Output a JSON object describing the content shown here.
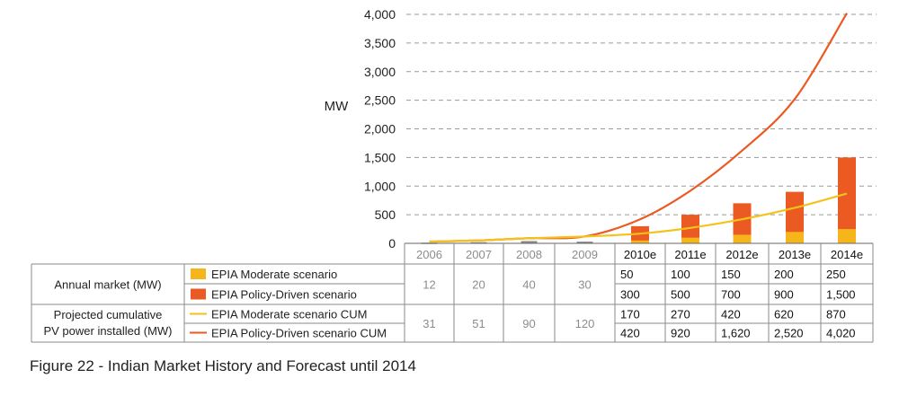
{
  "chart_data": {
    "type": "bar",
    "ylabel": "MW",
    "ylim": [
      0,
      4000
    ],
    "yticks": [
      0,
      500,
      1000,
      1500,
      2000,
      2500,
      3000,
      3500,
      4000
    ],
    "ytick_labels": [
      "0",
      "500",
      "1,000",
      "1,500",
      "2,000",
      "2,500",
      "3,000",
      "3,500",
      "4,000"
    ],
    "grid": true,
    "categories": [
      "2006",
      "2007",
      "2008",
      "2009",
      "2010e",
      "2011e",
      "2012e",
      "2013e",
      "2014e"
    ],
    "historical_count": 4,
    "series": [
      {
        "name": "EPIA Moderate scenario",
        "kind": "bar",
        "color": "#f5b51b",
        "values": [
          12,
          20,
          40,
          30,
          50,
          100,
          150,
          200,
          250
        ]
      },
      {
        "name": "EPIA Policy-Driven scenario",
        "kind": "bar",
        "color": "#ea5a22",
        "values": [
          12,
          20,
          40,
          30,
          300,
          500,
          700,
          900,
          1500
        ]
      },
      {
        "name": "EPIA Moderate scenario CUM",
        "kind": "line",
        "color": "#f5c21b",
        "values": [
          31,
          51,
          90,
          120,
          170,
          270,
          420,
          620,
          870
        ]
      },
      {
        "name": "EPIA Policy-Driven scenario CUM",
        "kind": "line",
        "color": "#ea5a22",
        "values": [
          31,
          51,
          90,
          120,
          420,
          920,
          1620,
          2520,
          4020
        ]
      }
    ],
    "historical_bar_color": "#8c8c8c"
  },
  "table": {
    "row_group_annual": "Annual market (MW)",
    "row_group_cum_line1": "Projected cumulative",
    "row_group_cum_line2": "PV power installed (MW)",
    "annual_hist": [
      "12",
      "20",
      "40",
      "30"
    ],
    "cum_hist": [
      "31",
      "51",
      "90",
      "120"
    ],
    "moderate_est": [
      "50",
      "100",
      "150",
      "200",
      "250"
    ],
    "policy_est": [
      "300",
      "500",
      "700",
      "900",
      "1,500"
    ],
    "moderate_cum_est": [
      "170",
      "270",
      "420",
      "620",
      "870"
    ],
    "policy_cum_est": [
      "420",
      "920",
      "1,620",
      "2,520",
      "4,020"
    ]
  },
  "caption": "Figure 22 - Indian Market History and Forecast until 2014"
}
